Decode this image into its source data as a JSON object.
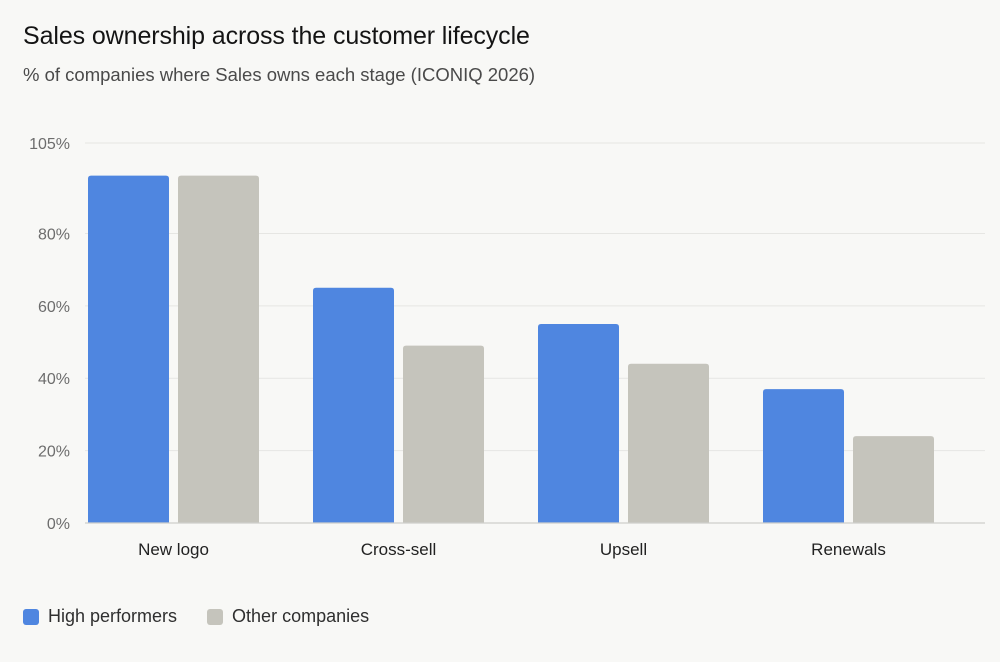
{
  "title": "Sales ownership across the customer lifecycle",
  "subtitle": "% of companies where Sales owns each stage (ICONIQ 2026)",
  "colors": {
    "high_performers": "#4f86e0",
    "other_companies": "#c5c4bc",
    "grid": "#e6e6e3",
    "axis": "#cfcfcb",
    "tick_text": "#6d6d6d",
    "category_text": "#222222"
  },
  "chart_data": {
    "type": "bar",
    "categories": [
      "New logo",
      "Cross-sell",
      "Upsell",
      "Renewals"
    ],
    "series": [
      {
        "name": "High performers",
        "color": "#4f86e0",
        "values": [
          96,
          65,
          55,
          37
        ]
      },
      {
        "name": "Other companies",
        "color": "#c5c4bc",
        "values": [
          96,
          49,
          44,
          24
        ]
      }
    ],
    "ylim": [
      0,
      105
    ],
    "yticks": [
      0,
      20,
      40,
      60,
      80,
      105
    ],
    "ytick_labels": [
      "0%",
      "20%",
      "40%",
      "60%",
      "80%",
      "105%"
    ],
    "grid": true,
    "legend_position": "bottom-left"
  }
}
